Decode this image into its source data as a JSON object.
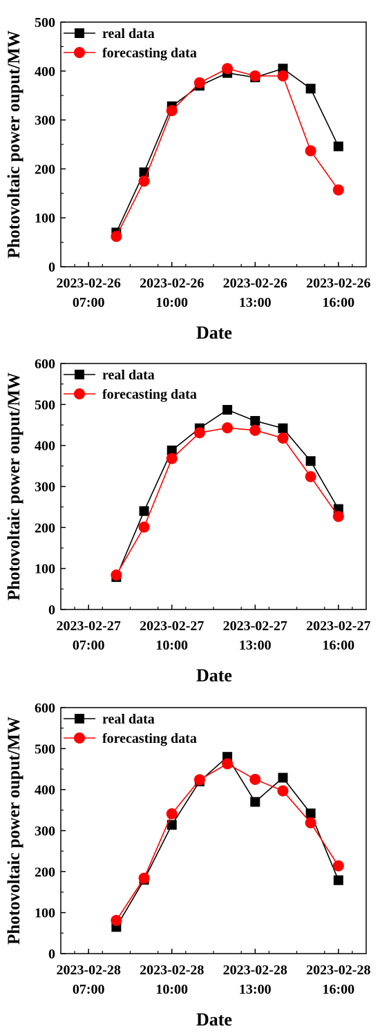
{
  "colors": {
    "real": "#000000",
    "forecast": "#ff0000"
  },
  "chart_data": [
    {
      "type": "line",
      "xlabel": "Date",
      "ylabel": "Photovoltaic power ouput/MW",
      "ylim": [
        0,
        500
      ],
      "yticks": [
        0,
        100,
        200,
        300,
        400,
        500
      ],
      "xlim": [
        6,
        17
      ],
      "xticks": [
        {
          "x": 7,
          "date": "2023-02-26",
          "time": "07:00"
        },
        {
          "x": 10,
          "date": "2023-02-26",
          "time": "10:00"
        },
        {
          "x": 13,
          "date": "2023-02-26",
          "time": "13:00"
        },
        {
          "x": 16,
          "date": "2023-02-26",
          "time": "16:00"
        }
      ],
      "legend_position": "top-left",
      "x": [
        8,
        9,
        10,
        11,
        12,
        13,
        14,
        15,
        16
      ],
      "series": [
        {
          "name": "real data",
          "marker": "square",
          "color": "#000000",
          "values": [
            70,
            193,
            328,
            370,
            396,
            387,
            405,
            364,
            246
          ]
        },
        {
          "name": "forecasting data",
          "marker": "circle",
          "color": "#ff0000",
          "values": [
            62,
            175,
            319,
            376,
            405,
            390,
            390,
            237,
            157
          ]
        }
      ]
    },
    {
      "type": "line",
      "xlabel": "Date",
      "ylabel": "Photovoltaic power ouput/MW",
      "ylim": [
        0,
        600
      ],
      "yticks": [
        0,
        100,
        200,
        300,
        400,
        500,
        600
      ],
      "xlim": [
        6,
        17
      ],
      "xticks": [
        {
          "x": 7,
          "date": "2023-02-27",
          "time": "07:00"
        },
        {
          "x": 10,
          "date": "2023-02-27",
          "time": "10:00"
        },
        {
          "x": 13,
          "date": "2023-02-27",
          "time": "13:00"
        },
        {
          "x": 16,
          "date": "2023-02-27",
          "time": "16:00"
        }
      ],
      "legend_position": "top-left",
      "x": [
        8,
        9,
        10,
        11,
        12,
        13,
        14,
        15,
        16
      ],
      "series": [
        {
          "name": "real data",
          "marker": "square",
          "color": "#000000",
          "values": [
            79,
            240,
            388,
            442,
            487,
            460,
            442,
            362,
            245
          ]
        },
        {
          "name": "forecasting data",
          "marker": "circle",
          "color": "#ff0000",
          "values": [
            84,
            201,
            368,
            431,
            443,
            437,
            418,
            324,
            227
          ]
        }
      ]
    },
    {
      "type": "line",
      "xlabel": "Date",
      "ylabel": "Photovoltaic power ouput/MW",
      "ylim": [
        0,
        600
      ],
      "yticks": [
        0,
        100,
        200,
        300,
        400,
        500,
        600
      ],
      "xlim": [
        6,
        17
      ],
      "xticks": [
        {
          "x": 7,
          "date": "2023-02-28",
          "time": "07:00"
        },
        {
          "x": 10,
          "date": "2023-02-28",
          "time": "10:00"
        },
        {
          "x": 13,
          "date": "2023-02-28",
          "time": "13:00"
        },
        {
          "x": 16,
          "date": "2023-02-28",
          "time": "16:00"
        }
      ],
      "legend_position": "top-left",
      "x": [
        8,
        9,
        10,
        11,
        12,
        13,
        14,
        15,
        16
      ],
      "series": [
        {
          "name": "real data",
          "marker": "square",
          "color": "#000000",
          "values": [
            65,
            180,
            314,
            420,
            480,
            370,
            429,
            342,
            179
          ]
        },
        {
          "name": "forecasting data",
          "marker": "circle",
          "color": "#ff0000",
          "values": [
            81,
            184,
            341,
            424,
            463,
            425,
            397,
            319,
            214
          ]
        }
      ]
    }
  ]
}
